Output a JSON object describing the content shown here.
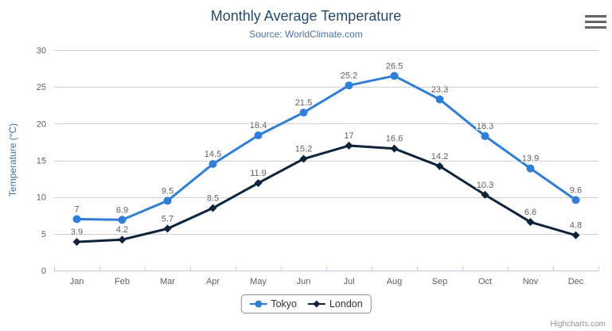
{
  "chart": {
    "title": "Monthly Average Temperature",
    "subtitle": "Source: WorldClimate.com",
    "credits": "Highcharts.com"
  },
  "chart_data": {
    "type": "line",
    "title": "Monthly Average Temperature",
    "subtitle": "Source: WorldClimate.com",
    "categories": [
      "Jan",
      "Feb",
      "Mar",
      "Apr",
      "May",
      "Jun",
      "Jul",
      "Aug",
      "Sep",
      "Oct",
      "Nov",
      "Dec"
    ],
    "series": [
      {
        "name": "Tokyo",
        "color": "#2f7ed8",
        "marker": "circle",
        "values": [
          7,
          6.9,
          9.5,
          14.5,
          18.4,
          21.5,
          25.2,
          26.5,
          23.3,
          18.3,
          13.9,
          9.6
        ]
      },
      {
        "name": "London",
        "color": "#0d233a",
        "marker": "diamond",
        "values": [
          3.9,
          4.2,
          5.7,
          8.5,
          11.9,
          15.2,
          17,
          16.6,
          14.2,
          10.3,
          6.6,
          4.8
        ]
      }
    ],
    "xlabel": "",
    "ylabel": "Temperature (°C)",
    "ylim": [
      0,
      30
    ],
    "ytick_step": 5,
    "grid": true,
    "data_labels_visible": true,
    "legend_position": "bottom-center"
  },
  "colors": {
    "title": "#274b6d",
    "subtitle": "#4d759e",
    "axis_title": "#4572a7",
    "axis_labels": "#606060",
    "data_labels": "#606060",
    "grid_line": "#d0d0d0",
    "axis_line": "#c0d0e0",
    "legend_text": "#333333",
    "legend_border": "#909090",
    "credits": "#909090",
    "menu_icon": "#666666",
    "background": "#ffffff"
  }
}
